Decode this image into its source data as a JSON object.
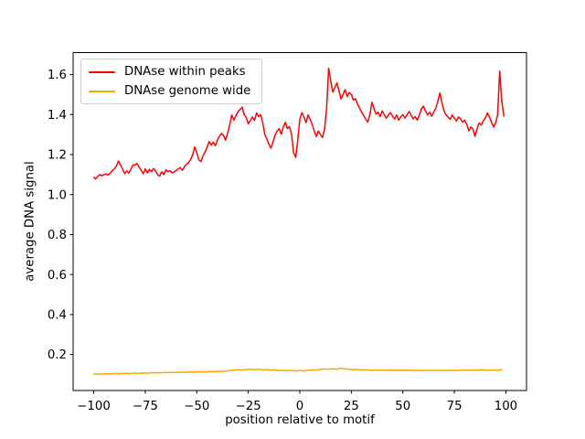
{
  "figure": {
    "background": "#ffffff"
  },
  "chart_data": {
    "type": "line",
    "title": "",
    "xlabel": "position relative to motif",
    "ylabel": "average DNA signal",
    "xlim": [
      -110,
      110
    ],
    "ylim": [
      0.02,
      1.71
    ],
    "grid": false,
    "legend_position": "upper left",
    "xticks": {
      "values": [
        -100,
        -75,
        -50,
        -25,
        0,
        25,
        50,
        75,
        100
      ],
      "labels": [
        "−100",
        "−75",
        "−50",
        "−25",
        "0",
        "25",
        "50",
        "75",
        "100"
      ]
    },
    "yticks": {
      "values": [
        0.2,
        0.4,
        0.6,
        0.8,
        1.0,
        1.2,
        1.4,
        1.6
      ],
      "labels": [
        "0.2",
        "0.4",
        "0.6",
        "0.8",
        "1.0",
        "1.2",
        "1.4",
        "1.6"
      ]
    },
    "axis_color": "#000000",
    "series": [
      {
        "name": "DNAse within peaks",
        "color": "#ff0000",
        "x_start": -100,
        "x_step": 1,
        "values": [
          1.085,
          1.078,
          1.092,
          1.1,
          1.094,
          1.1,
          1.103,
          1.097,
          1.107,
          1.118,
          1.128,
          1.142,
          1.168,
          1.148,
          1.128,
          1.104,
          1.118,
          1.108,
          1.126,
          1.148,
          1.148,
          1.155,
          1.138,
          1.122,
          1.104,
          1.128,
          1.108,
          1.126,
          1.115,
          1.13,
          1.118,
          1.1,
          1.092,
          1.114,
          1.1,
          1.124,
          1.114,
          1.12,
          1.108,
          1.114,
          1.12,
          1.128,
          1.135,
          1.122,
          1.138,
          1.152,
          1.16,
          1.175,
          1.2,
          1.238,
          1.21,
          1.175,
          1.165,
          1.192,
          1.212,
          1.235,
          1.265,
          1.248,
          1.262,
          1.245,
          1.272,
          1.292,
          1.305,
          1.295,
          1.272,
          1.308,
          1.348,
          1.398,
          1.372,
          1.395,
          1.415,
          1.425,
          1.437,
          1.4,
          1.386,
          1.354,
          1.37,
          1.388,
          1.37,
          1.408,
          1.39,
          1.4,
          1.36,
          1.3,
          1.278,
          1.252,
          1.232,
          1.262,
          1.296,
          1.318,
          1.33,
          1.302,
          1.338,
          1.362,
          1.33,
          1.34,
          1.3,
          1.21,
          1.186,
          1.268,
          1.377,
          1.41,
          1.388,
          1.36,
          1.398,
          1.377,
          1.35,
          1.318,
          1.29,
          1.318,
          1.3,
          1.285,
          1.328,
          1.43,
          1.632,
          1.57,
          1.512,
          1.535,
          1.558,
          1.52,
          1.478,
          1.5,
          1.525,
          1.49,
          1.51,
          1.5,
          1.472,
          1.48,
          1.452,
          1.432,
          1.412,
          1.395,
          1.378,
          1.362,
          1.4,
          1.462,
          1.43,
          1.402,
          1.412,
          1.39,
          1.418,
          1.4,
          1.382,
          1.398,
          1.41,
          1.392,
          1.378,
          1.398,
          1.372,
          1.388,
          1.4,
          1.382,
          1.398,
          1.415,
          1.398,
          1.378,
          1.39,
          1.372,
          1.398,
          1.428,
          1.442,
          1.418,
          1.398,
          1.412,
          1.392,
          1.412,
          1.432,
          1.468,
          1.508,
          1.458,
          1.418,
          1.398,
          1.388,
          1.376,
          1.398,
          1.382,
          1.368,
          1.388,
          1.378,
          1.362,
          1.372,
          1.352,
          1.318,
          1.338,
          1.328,
          1.292,
          1.328,
          1.358,
          1.348,
          1.368,
          1.382,
          1.408,
          1.388,
          1.362,
          1.338,
          1.358,
          1.398,
          1.618,
          1.468,
          1.392
        ]
      },
      {
        "name": "DNAse genome wide",
        "color": "#ffa500",
        "x_start": -100,
        "x_step": 2,
        "values": [
          0.102,
          0.103,
          0.102,
          0.104,
          0.103,
          0.105,
          0.104,
          0.105,
          0.106,
          0.105,
          0.107,
          0.106,
          0.108,
          0.107,
          0.108,
          0.109,
          0.108,
          0.11,
          0.109,
          0.111,
          0.11,
          0.112,
          0.111,
          0.112,
          0.113,
          0.112,
          0.114,
          0.113,
          0.115,
          0.114,
          0.116,
          0.115,
          0.117,
          0.12,
          0.122,
          0.124,
          0.122,
          0.125,
          0.126,
          0.124,
          0.126,
          0.123,
          0.125,
          0.122,
          0.124,
          0.12,
          0.122,
          0.119,
          0.121,
          0.118,
          0.12,
          0.118,
          0.121,
          0.124,
          0.122,
          0.126,
          0.128,
          0.126,
          0.129,
          0.127,
          0.131,
          0.128,
          0.126,
          0.124,
          0.125,
          0.123,
          0.124,
          0.122,
          0.123,
          0.122,
          0.123,
          0.122,
          0.121,
          0.122,
          0.121,
          0.122,
          0.121,
          0.122,
          0.121,
          0.12,
          0.121,
          0.12,
          0.121,
          0.12,
          0.121,
          0.12,
          0.121,
          0.12,
          0.122,
          0.121,
          0.123,
          0.122,
          0.123,
          0.122,
          0.124,
          0.123,
          0.122,
          0.123,
          0.122,
          0.124
        ]
      }
    ]
  }
}
